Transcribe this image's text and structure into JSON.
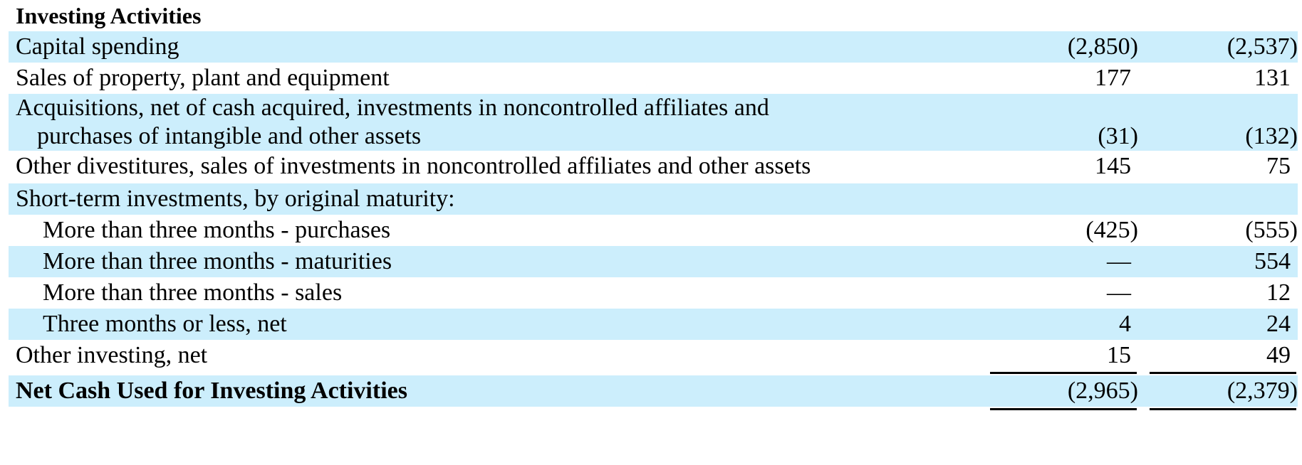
{
  "section_title": "Investing Activities",
  "rows": [
    {
      "label": "Capital spending",
      "col1": "(2,850)",
      "col2": "(2,537)"
    },
    {
      "label": "Sales of property, plant and equipment",
      "col1": "177",
      "col2": "131"
    },
    {
      "label": "Acquisitions, net of cash acquired, investments in noncontrolled affiliates and",
      "label_cont": "purchases of intangible and other assets",
      "col1": "(31)",
      "col2": "(132)"
    },
    {
      "label": "Other divestitures, sales of investments in noncontrolled affiliates and other assets",
      "col1": "145",
      "col2": "75"
    },
    {
      "label": "Short-term investments, by original maturity:",
      "col1": "",
      "col2": ""
    },
    {
      "label": "More than three months - purchases",
      "col1": "(425)",
      "col2": "(555)"
    },
    {
      "label": "More than three months - maturities",
      "col1": "—",
      "col2": "554"
    },
    {
      "label": "More than three months - sales",
      "col1": "—",
      "col2": "12"
    },
    {
      "label": "Three months or less, net",
      "col1": "4",
      "col2": "24"
    },
    {
      "label": "Other investing, net",
      "col1": "15",
      "col2": "49"
    }
  ],
  "total": {
    "label": "Net Cash Used for Investing Activities",
    "col1": "(2,965)",
    "col2": "(2,379)"
  },
  "colors": {
    "row_shade": "#cceefc",
    "text": "#000000"
  }
}
